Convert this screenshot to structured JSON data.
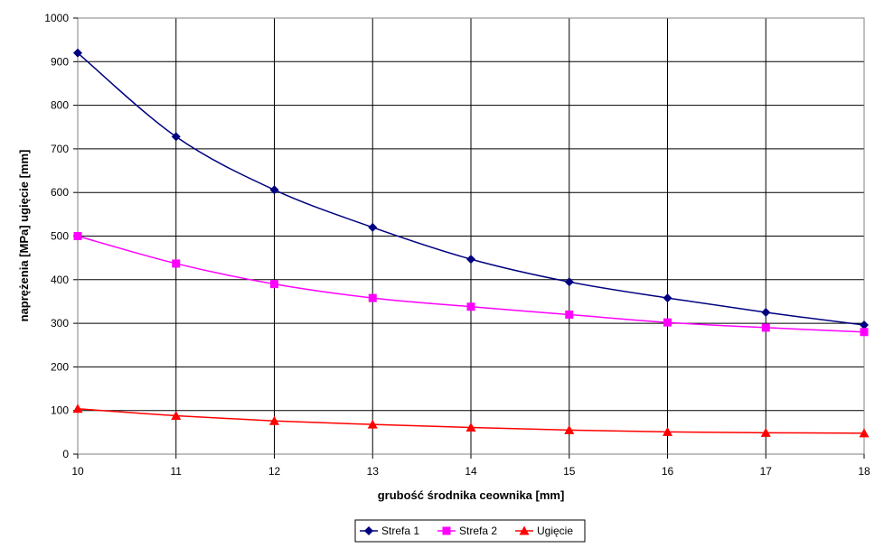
{
  "chart_data": {
    "type": "line",
    "title": "",
    "xlabel": "grubość środnika ceownika [mm]",
    "ylabel": "naprężenia [MPa]  ugięcie [mm]",
    "x": [
      10,
      11,
      12,
      13,
      14,
      15,
      16,
      17,
      18
    ],
    "xlim": [
      10,
      18
    ],
    "ylim": [
      0,
      1000
    ],
    "y_ticks": [
      0,
      100,
      200,
      300,
      400,
      500,
      600,
      700,
      800,
      900,
      1000
    ],
    "grid": true,
    "legend_position": "bottom-center",
    "series": [
      {
        "name": "Strefa 1",
        "color": "#000080",
        "marker": "diamond",
        "values": [
          920,
          728,
          606,
          520,
          447,
          395,
          358,
          325,
          296
        ]
      },
      {
        "name": "Strefa 2",
        "color": "#FF00FF",
        "marker": "square",
        "values": [
          500,
          437,
          390,
          358,
          338,
          320,
          302,
          290,
          280
        ]
      },
      {
        "name": "Ugięcie",
        "color": "#FF0000",
        "marker": "triangle",
        "values": [
          104,
          88,
          76,
          68,
          61,
          55,
          51,
          49,
          48
        ]
      }
    ]
  }
}
